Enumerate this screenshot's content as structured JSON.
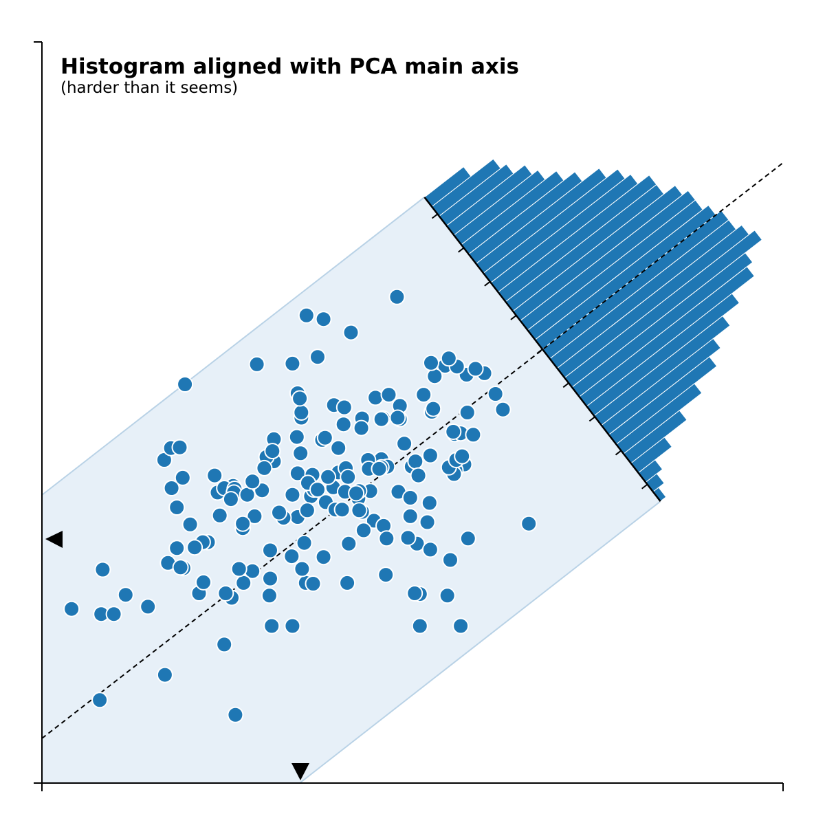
{
  "chart_data": {
    "type": "scatter",
    "title": "Histogram aligned with PCA main axis",
    "subtitle": "(harder than it seems)",
    "xlim": [
      0,
      1
    ],
    "ylim": [
      0,
      1
    ],
    "axis_ticks": "none",
    "grid": false,
    "colors": {
      "points": "#1f77b4",
      "bars": "#1f77b4",
      "band_fill": "#e7f0f8",
      "band_edge": "#b9d2e6",
      "axis": "#000000"
    },
    "pca_axis": {
      "style": "dashed",
      "direction": [
        1,
        0.76
      ]
    },
    "points": [
      [
        0.479,
        0.656
      ],
      [
        0.29,
        0.565
      ],
      [
        0.338,
        0.566
      ],
      [
        0.193,
        0.538
      ],
      [
        0.573,
        0.551
      ],
      [
        0.544,
        0.563
      ],
      [
        0.46,
        0.492
      ],
      [
        0.35,
        0.493
      ],
      [
        0.35,
        0.5
      ],
      [
        0.344,
        0.467
      ],
      [
        0.515,
        0.524
      ],
      [
        0.378,
        0.463
      ],
      [
        0.349,
        0.445
      ],
      [
        0.313,
        0.434
      ],
      [
        0.56,
        0.562
      ],
      [
        0.45,
        0.52
      ],
      [
        0.458,
        0.491
      ],
      [
        0.526,
        0.501
      ],
      [
        0.407,
        0.484
      ],
      [
        0.458,
        0.437
      ],
      [
        0.557,
        0.471
      ],
      [
        0.466,
        0.427
      ],
      [
        0.443,
        0.394
      ],
      [
        0.394,
        0.51
      ],
      [
        0.4,
        0.419
      ],
      [
        0.44,
        0.436
      ],
      [
        0.458,
        0.426
      ],
      [
        0.382,
        0.466
      ],
      [
        0.41,
        0.425
      ],
      [
        0.345,
        0.418
      ],
      [
        0.448,
        0.354
      ],
      [
        0.461,
        0.347
      ],
      [
        0.383,
        0.379
      ],
      [
        0.414,
        0.323
      ],
      [
        0.313,
        0.464
      ],
      [
        0.303,
        0.44
      ],
      [
        0.311,
        0.448
      ],
      [
        0.271,
        0.344
      ],
      [
        0.24,
        0.361
      ],
      [
        0.182,
        0.372
      ],
      [
        0.224,
        0.325
      ],
      [
        0.217,
        0.325
      ],
      [
        0.182,
        0.317
      ],
      [
        0.287,
        0.36
      ],
      [
        0.258,
        0.401
      ],
      [
        0.237,
        0.392
      ],
      [
        0.246,
        0.398
      ],
      [
        0.26,
        0.397
      ],
      [
        0.259,
        0.392
      ],
      [
        0.277,
        0.389
      ],
      [
        0.297,
        0.395
      ],
      [
        0.284,
        0.286
      ],
      [
        0.337,
        0.306
      ],
      [
        0.308,
        0.276
      ],
      [
        0.338,
        0.212
      ],
      [
        0.412,
        0.27
      ],
      [
        0.51,
        0.212
      ],
      [
        0.393,
        0.399
      ],
      [
        0.413,
        0.413
      ],
      [
        0.345,
        0.359
      ],
      [
        0.409,
        0.393
      ],
      [
        0.363,
        0.387
      ],
      [
        0.356,
        0.27
      ],
      [
        0.326,
        0.358
      ],
      [
        0.366,
        0.269
      ],
      [
        0.351,
        0.289
      ],
      [
        0.38,
        0.305
      ],
      [
        0.367,
        0.396
      ],
      [
        0.396,
        0.369
      ],
      [
        0.307,
        0.253
      ],
      [
        0.272,
        0.27
      ],
      [
        0.256,
        0.25
      ],
      [
        0.31,
        0.212
      ],
      [
        0.248,
        0.256
      ],
      [
        0.212,
        0.256
      ],
      [
        0.218,
        0.271
      ],
      [
        0.246,
        0.187
      ],
      [
        0.2,
        0.349
      ],
      [
        0.175,
        0.398
      ],
      [
        0.206,
        0.318
      ],
      [
        0.17,
        0.297
      ],
      [
        0.113,
        0.254
      ],
      [
        0.082,
        0.288
      ],
      [
        0.191,
        0.29
      ],
      [
        0.08,
        0.228
      ],
      [
        0.04,
        0.235
      ],
      [
        0.143,
        0.238
      ],
      [
        0.187,
        0.291
      ],
      [
        0.097,
        0.228
      ],
      [
        0.166,
        0.146
      ],
      [
        0.078,
        0.112
      ],
      [
        0.261,
        0.092
      ],
      [
        0.19,
        0.412
      ],
      [
        0.266,
        0.289
      ],
      [
        0.255,
        0.383
      ],
      [
        0.432,
        0.366
      ],
      [
        0.434,
        0.341
      ],
      [
        0.51,
        0.255
      ],
      [
        0.506,
        0.323
      ],
      [
        0.464,
        0.281
      ],
      [
        0.503,
        0.256
      ],
      [
        0.547,
        0.253
      ],
      [
        0.565,
        0.212
      ],
      [
        0.524,
        0.315
      ],
      [
        0.465,
        0.33
      ],
      [
        0.497,
        0.36
      ],
      [
        0.551,
        0.301
      ],
      [
        0.57,
        0.43
      ],
      [
        0.558,
        0.422
      ],
      [
        0.556,
        0.417
      ],
      [
        0.52,
        0.352
      ],
      [
        0.427,
        0.384
      ],
      [
        0.494,
        0.331
      ],
      [
        0.481,
        0.393
      ],
      [
        0.4,
        0.452
      ],
      [
        0.428,
        0.368
      ],
      [
        0.523,
        0.378
      ],
      [
        0.441,
        0.424
      ],
      [
        0.575,
        0.33
      ],
      [
        0.408,
        0.507
      ],
      [
        0.432,
        0.492
      ],
      [
        0.483,
        0.491
      ],
      [
        0.489,
        0.458
      ],
      [
        0.565,
        0.472
      ],
      [
        0.468,
        0.524
      ],
      [
        0.483,
        0.509
      ],
      [
        0.524,
        0.442
      ],
      [
        0.582,
        0.47
      ],
      [
        0.528,
        0.505
      ],
      [
        0.574,
        0.5
      ],
      [
        0.549,
        0.426
      ],
      [
        0.657,
        0.35
      ],
      [
        0.499,
        0.427
      ],
      [
        0.549,
        0.573
      ],
      [
        0.53,
        0.549
      ],
      [
        0.525,
        0.567
      ],
      [
        0.597,
        0.553
      ],
      [
        0.585,
        0.559
      ],
      [
        0.622,
        0.504
      ],
      [
        0.559,
        0.436
      ],
      [
        0.567,
        0.441
      ],
      [
        0.372,
        0.575
      ],
      [
        0.357,
        0.631
      ],
      [
        0.38,
        0.626
      ],
      [
        0.345,
        0.526
      ],
      [
        0.348,
        0.519
      ],
      [
        0.417,
        0.608
      ],
      [
        0.431,
        0.479
      ],
      [
        0.504,
        0.434
      ],
      [
        0.497,
        0.385
      ],
      [
        0.405,
        0.369
      ],
      [
        0.428,
        0.394
      ],
      [
        0.424,
        0.391
      ],
      [
        0.365,
        0.416
      ],
      [
        0.271,
        0.35
      ],
      [
        0.308,
        0.314
      ],
      [
        0.354,
        0.324
      ],
      [
        0.358,
        0.368
      ],
      [
        0.32,
        0.365
      ],
      [
        0.284,
        0.407
      ],
      [
        0.233,
        0.415
      ],
      [
        0.165,
        0.436
      ],
      [
        0.174,
        0.452
      ],
      [
        0.186,
        0.453
      ],
      [
        0.3,
        0.425
      ],
      [
        0.338,
        0.389
      ],
      [
        0.386,
        0.413
      ],
      [
        0.359,
        0.405
      ],
      [
        0.455,
        0.424
      ],
      [
        0.372,
        0.396
      ],
      [
        0.48,
        0.493
      ],
      [
        0.508,
        0.415
      ],
      [
        0.612,
        0.525
      ],
      [
        0.555,
        0.474
      ]
    ],
    "histogram": {
      "orientation": "perpendicular to PCA main axis",
      "bin_counts": [
        7,
        11,
        12,
        14,
        15,
        17,
        19,
        22,
        24,
        25,
        27,
        27,
        29,
        30,
        30,
        31,
        32,
        32,
        33,
        34,
        31,
        30,
        26,
        23,
        20,
        18,
        14,
        10,
        6,
        3,
        2,
        1
      ],
      "tick_count": 9
    },
    "markers": [
      {
        "axis": "y",
        "shape": "left-pointing triangle"
      },
      {
        "axis": "x",
        "shape": "down-pointing triangle"
      }
    ]
  }
}
